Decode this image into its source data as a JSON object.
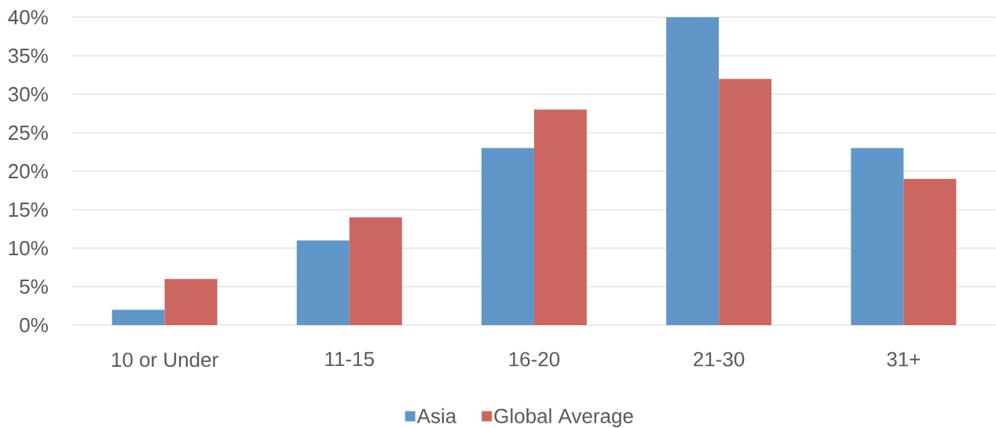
{
  "chart_data": {
    "type": "bar",
    "categories": [
      "10 or Under",
      "11-15",
      "16-20",
      "21-30",
      "31+"
    ],
    "series": [
      {
        "name": "Asia",
        "color": "#6096c8",
        "values": [
          2,
          11,
          23,
          40,
          23
        ]
      },
      {
        "name": "Global Average",
        "color": "#cc6660",
        "values": [
          6,
          14,
          28,
          32,
          19
        ]
      }
    ],
    "ylim": [
      0,
      40
    ],
    "yticks": [
      {
        "value": 0,
        "label": "0%"
      },
      {
        "value": 5,
        "label": "5%"
      },
      {
        "value": 10,
        "label": "10%"
      },
      {
        "value": 15,
        "label": "15%"
      },
      {
        "value": 20,
        "label": "20%"
      },
      {
        "value": 25,
        "label": "25%"
      },
      {
        "value": 30,
        "label": "30%"
      },
      {
        "value": 35,
        "label": "35%"
      },
      {
        "value": 40,
        "label": "40%"
      }
    ],
    "grid": "y",
    "legend": "bottom"
  }
}
